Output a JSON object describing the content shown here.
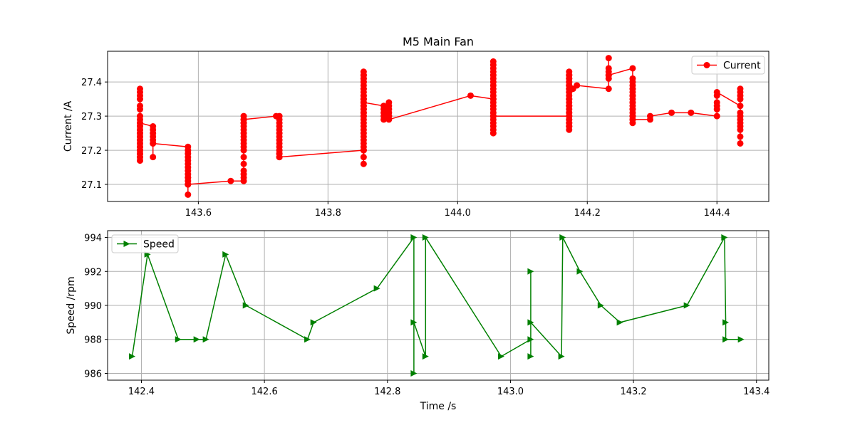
{
  "chart_data": [
    {
      "type": "line",
      "title": "M5 Main Fan",
      "xlabel": "",
      "ylabel": "Current /A",
      "xlim": [
        143.46,
        144.48
      ],
      "ylim": [
        27.05,
        27.49
      ],
      "xticks": [
        143.6,
        143.8,
        144.0,
        144.2,
        144.4
      ],
      "xtick_labels": [
        "143.6",
        "143.8",
        "144.0",
        "144.2",
        "144.4"
      ],
      "yticks": [
        27.1,
        27.2,
        27.3,
        27.4
      ],
      "ytick_labels": [
        "27.1",
        "27.2",
        "27.3",
        "27.4"
      ],
      "grid": true,
      "legend": "top-right",
      "series": [
        {
          "name": "Current",
          "color": "#ff0000",
          "marker": "circle",
          "x": [
            143.51,
            143.51,
            143.51,
            143.51,
            143.51,
            143.51,
            143.51,
            143.51,
            143.51,
            143.51,
            143.51,
            143.51,
            143.51,
            143.51,
            143.51,
            143.51,
            143.51,
            143.51,
            143.51,
            143.51,
            143.51,
            143.51,
            143.51,
            143.51,
            143.51,
            143.51,
            143.51,
            143.51,
            143.51,
            143.51,
            143.51,
            143.51,
            143.53,
            143.53,
            143.53,
            143.53,
            143.53,
            143.53,
            143.53,
            143.53,
            143.584,
            143.584,
            143.584,
            143.584,
            143.584,
            143.584,
            143.584,
            143.584,
            143.584,
            143.584,
            143.584,
            143.584,
            143.584,
            143.584,
            143.584,
            143.584,
            143.65,
            143.67,
            143.67,
            143.67,
            143.67,
            143.67,
            143.67,
            143.67,
            143.67,
            143.67,
            143.67,
            143.67,
            143.67,
            143.67,
            143.67,
            143.67,
            143.67,
            143.67,
            143.67,
            143.67,
            143.67,
            143.72,
            143.725,
            143.725,
            143.725,
            143.725,
            143.725,
            143.725,
            143.725,
            143.725,
            143.725,
            143.725,
            143.725,
            143.725,
            143.725,
            143.725,
            143.725,
            143.855,
            143.855,
            143.855,
            143.855,
            143.855,
            143.855,
            143.855,
            143.855,
            143.855,
            143.855,
            143.855,
            143.855,
            143.855,
            143.855,
            143.855,
            143.855,
            143.855,
            143.855,
            143.855,
            143.855,
            143.855,
            143.855,
            143.855,
            143.855,
            143.855,
            143.855,
            143.855,
            143.855,
            143.855,
            143.855,
            143.855,
            143.855,
            143.855,
            143.855,
            143.855,
            143.855,
            143.855,
            143.855,
            143.855,
            143.855,
            143.886,
            143.886,
            143.886,
            143.886,
            143.886,
            143.894,
            143.894,
            143.894,
            143.894,
            143.894,
            143.894,
            143.894,
            144.02,
            144.055,
            144.055,
            144.055,
            144.055,
            144.055,
            144.055,
            144.055,
            144.055,
            144.055,
            144.055,
            144.055,
            144.055,
            144.055,
            144.055,
            144.055,
            144.055,
            144.055,
            144.055,
            144.055,
            144.055,
            144.055,
            144.055,
            144.055,
            144.055,
            144.172,
            144.172,
            144.172,
            144.172,
            144.172,
            144.172,
            144.172,
            144.172,
            144.172,
            144.172,
            144.172,
            144.172,
            144.172,
            144.172,
            144.172,
            144.172,
            144.172,
            144.172,
            144.172,
            144.172,
            144.172,
            144.172,
            144.172,
            144.172,
            144.172,
            144.172,
            144.172,
            144.172,
            144.172,
            144.172,
            144.172,
            144.172,
            144.178,
            144.184,
            144.233,
            144.233,
            144.233,
            144.233,
            144.233,
            144.233,
            144.233,
            144.27,
            144.27,
            144.27,
            144.27,
            144.27,
            144.27,
            144.27,
            144.27,
            144.27,
            144.27,
            144.27,
            144.27,
            144.27,
            144.27,
            144.27,
            144.27,
            144.27,
            144.27,
            144.27,
            144.27,
            144.27,
            144.297,
            144.297,
            144.33,
            144.36,
            144.4,
            144.4,
            144.4,
            144.4,
            144.4,
            144.4,
            144.436,
            144.436,
            144.436,
            144.436,
            144.436,
            144.436,
            144.436,
            144.436,
            144.436,
            144.436,
            144.436,
            144.436,
            144.436
          ],
          "y": [
            27.37,
            27.38,
            27.36,
            27.35,
            27.33,
            27.32,
            27.3,
            27.29,
            27.28,
            27.27,
            27.26,
            27.25,
            27.24,
            27.23,
            27.22,
            27.21,
            27.2,
            27.19,
            27.18,
            27.17,
            27.17,
            27.18,
            27.19,
            27.2,
            27.21,
            27.22,
            27.23,
            27.24,
            27.25,
            27.26,
            27.27,
            27.28,
            27.27,
            27.26,
            27.25,
            27.24,
            27.23,
            27.22,
            27.18,
            27.22,
            27.21,
            27.2,
            27.19,
            27.18,
            27.17,
            27.16,
            27.15,
            27.14,
            27.13,
            27.12,
            27.11,
            27.1,
            27.07,
            27.1,
            27.12,
            27.1,
            27.11,
            27.11,
            27.12,
            27.13,
            27.14,
            27.16,
            27.18,
            27.2,
            27.21,
            27.22,
            27.23,
            27.24,
            27.25,
            27.26,
            27.27,
            27.28,
            27.29,
            27.3,
            27.29,
            27.28,
            27.29,
            27.3,
            27.3,
            27.29,
            27.28,
            27.27,
            27.26,
            27.25,
            27.24,
            27.23,
            27.22,
            27.21,
            27.2,
            27.19,
            27.18,
            27.19,
            27.18,
            27.2,
            27.16,
            27.18,
            27.2,
            27.21,
            27.22,
            27.23,
            27.24,
            27.25,
            27.26,
            27.27,
            27.28,
            27.29,
            27.3,
            27.31,
            27.32,
            27.33,
            27.34,
            27.35,
            27.36,
            27.37,
            27.38,
            27.39,
            27.4,
            27.41,
            27.42,
            27.43,
            27.42,
            27.41,
            27.4,
            27.38,
            27.36,
            27.35,
            27.34,
            27.33,
            27.32,
            27.31,
            27.3,
            27.35,
            27.34,
            27.33,
            27.32,
            27.31,
            27.3,
            27.29,
            27.3,
            27.31,
            27.32,
            27.33,
            27.34,
            27.3,
            27.29,
            27.36,
            27.35,
            27.46,
            27.45,
            27.44,
            27.43,
            27.42,
            27.41,
            27.4,
            27.39,
            27.38,
            27.37,
            27.36,
            27.35,
            27.34,
            27.33,
            27.32,
            27.31,
            27.3,
            27.29,
            27.27,
            27.26,
            27.25,
            27.28,
            27.3,
            27.3,
            27.43,
            27.42,
            27.41,
            27.4,
            27.39,
            27.38,
            27.37,
            27.36,
            27.35,
            27.34,
            27.33,
            27.32,
            27.31,
            27.3,
            27.29,
            27.28,
            27.27,
            27.26,
            27.27,
            27.28,
            27.29,
            27.31,
            27.33,
            27.35,
            27.37,
            27.39,
            27.41,
            27.42,
            27.4,
            27.38,
            27.39,
            27.38,
            27.39,
            27.38,
            27.41,
            27.42,
            27.43,
            27.44,
            27.47,
            27.42,
            27.44,
            27.41,
            27.4,
            27.39,
            27.38,
            27.37,
            27.36,
            27.35,
            27.34,
            27.33,
            27.32,
            27.31,
            27.3,
            27.29,
            27.28,
            27.3,
            27.32,
            27.34,
            27.36,
            27.38,
            27.29,
            27.29,
            27.3,
            27.31,
            27.31,
            27.3,
            27.32,
            27.33,
            27.34,
            27.36,
            27.37,
            27.33,
            27.35,
            27.36,
            27.37,
            27.38,
            27.31,
            27.3,
            27.29,
            27.28,
            27.27,
            27.26,
            27.24,
            27.22
          ]
        }
      ]
    },
    {
      "type": "line",
      "title": "",
      "xlabel": "Time /s",
      "ylabel": "Speed /rpm",
      "xlim": [
        142.345,
        143.42
      ],
      "ylim": [
        985.6,
        994.4
      ],
      "xticks": [
        142.4,
        142.6,
        142.8,
        143.0,
        143.2,
        143.4
      ],
      "xtick_labels": [
        "142.4",
        "142.6",
        "142.8",
        "143.0",
        "143.2",
        "143.4"
      ],
      "yticks": [
        986,
        988,
        990,
        992,
        994
      ],
      "ytick_labels": [
        "986",
        "988",
        "990",
        "992",
        "994"
      ],
      "grid": true,
      "legend": "top-left",
      "series": [
        {
          "name": "Speed",
          "color": "#008000",
          "marker": "triangle-right",
          "x": [
            142.385,
            142.41,
            142.46,
            142.49,
            142.505,
            142.537,
            142.57,
            142.67,
            142.68,
            142.783,
            142.843,
            142.843,
            142.843,
            142.862,
            142.862,
            142.985,
            143.033,
            143.033,
            143.033,
            143.033,
            143.083,
            143.085,
            143.113,
            143.147,
            143.178,
            143.287,
            143.348,
            143.35,
            143.35,
            143.375
          ],
          "y": [
            987,
            993,
            988,
            988,
            988,
            993,
            990,
            988,
            989,
            991,
            994,
            986,
            989,
            987,
            994,
            987,
            988,
            992,
            987,
            989,
            987,
            994,
            992,
            990,
            989,
            990,
            994,
            989,
            988,
            988
          ]
        }
      ]
    }
  ]
}
